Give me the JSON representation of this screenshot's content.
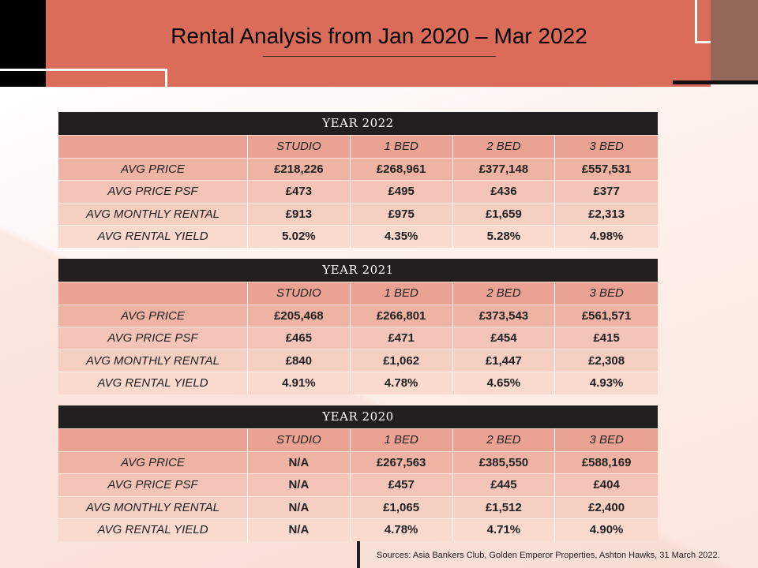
{
  "title": "Rental Analysis from  Jan 2020 – Mar 2022",
  "columns": [
    "STUDIO",
    "1 BED",
    "2 BED",
    "3 BED"
  ],
  "row_labels": [
    "AVG PRICE",
    "AVG PRICE PSF",
    "AVG MONTHLY RENTAL",
    "AVG RENTAL YIELD"
  ],
  "tables": [
    {
      "header": "YEAR 2022",
      "rows": [
        [
          "£218,226",
          "£268,961",
          "£377,148",
          "£557,531"
        ],
        [
          "£473",
          "£495",
          "£436",
          "£377"
        ],
        [
          "£913",
          "£975",
          "£1,659",
          "£2,313"
        ],
        [
          "5.02%",
          "4.35%",
          "5.28%",
          "4.98%"
        ]
      ]
    },
    {
      "header": "YEAR 2021",
      "rows": [
        [
          "£205,468",
          "£266,801",
          "£373,543",
          "£561,571"
        ],
        [
          "£465",
          "£471",
          "£454",
          "£415"
        ],
        [
          "£840",
          "£1,062",
          "£1,447",
          "£2,308"
        ],
        [
          "4.91%",
          "4.78%",
          "4.65%",
          "4.93%"
        ]
      ]
    },
    {
      "header": "YEAR 2020",
      "rows": [
        [
          "N/A",
          "£267,563",
          "£385,550",
          "£588,169"
        ],
        [
          "N/A",
          "£457",
          "£445",
          "£404"
        ],
        [
          "N/A",
          "£1,065",
          "£1,512",
          "£2,400"
        ],
        [
          "N/A",
          "4.78%",
          "4.71%",
          "4.90%"
        ]
      ]
    }
  ],
  "sources": "Sources: Asia Bankers Club, Golden Emperor Properties, Ashton Hawks, 31 March 2022."
}
